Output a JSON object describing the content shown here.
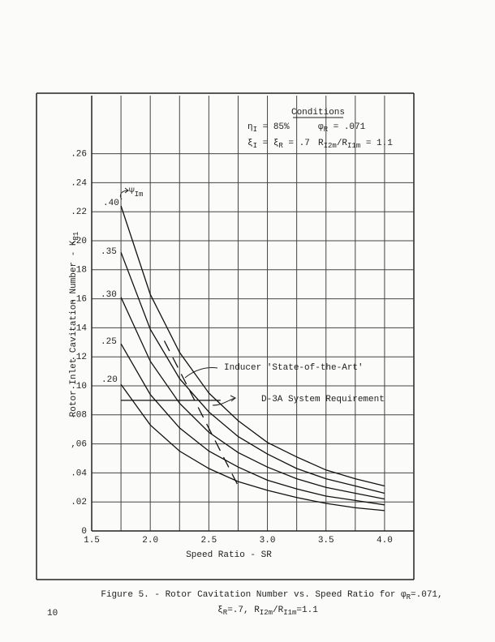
{
  "chart_data": {
    "type": "line",
    "xlabel": "Speed Ratio - SR",
    "ylabel": [
      "Rotor Inlet Cavitation Number - K",
      {
        "sub": "R1"
      }
    ],
    "xlim": [
      1.5,
      4.25
    ],
    "ylim": [
      0,
      0.3
    ],
    "xticks": [
      1.5,
      {
        "value": 2,
        "label": "2.0"
      },
      2.5,
      {
        "value": 3,
        "label": "3.0"
      },
      3.5,
      {
        "value": 4,
        "label": "4.0"
      }
    ],
    "xminor": [
      1.75,
      2.25,
      2.75,
      3.25,
      3.75
    ],
    "yticks": [
      0,
      {
        "value": 0.02,
        "label": ".02"
      },
      {
        "value": 0.04,
        "label": ".04"
      },
      {
        "value": 0.06,
        "label": ",06"
      },
      {
        "value": 0.08,
        "label": ".08"
      },
      {
        "value": 0.1,
        "label": ".10"
      },
      {
        "value": 0.12,
        "label": ".12"
      },
      {
        "value": 0.14,
        "label": ".14"
      },
      {
        "value": 0.16,
        "label": ",16"
      },
      {
        "value": 0.18,
        "label": ".18"
      },
      {
        "value": 0.2,
        "label": ".20"
      },
      {
        "value": 0.22,
        "label": ".22"
      },
      {
        "value": 0.24,
        "label": ".24"
      },
      {
        "value": 0.26,
        "label": ".26"
      }
    ],
    "grid": true,
    "curve_label_title": [
      "Ψ",
      {
        "sub": "Im"
      }
    ],
    "series": [
      {
        "name": ".40",
        "color": "#111111",
        "x": [
          1.75,
          2.0,
          2.25,
          2.5,
          2.75,
          3.0,
          3.25,
          3.5,
          3.75,
          4.0
        ],
        "values": [
          0.224,
          0.163,
          0.123,
          0.095,
          0.076,
          0.061,
          0.051,
          0.042,
          0.036,
          0.031
        ]
      },
      {
        "name": ".35",
        "color": "#111111",
        "x": [
          1.75,
          2.0,
          2.25,
          2.5,
          2.75,
          3.0,
          3.25,
          3.5,
          3.75,
          4.0
        ],
        "values": [
          0.192,
          0.139,
          0.105,
          0.082,
          0.065,
          0.053,
          0.043,
          0.036,
          0.031,
          0.026
        ]
      },
      {
        "name": ".30",
        "color": "#111111",
        "x": [
          1.75,
          2.0,
          2.25,
          2.5,
          2.75,
          3.0,
          3.25,
          3.5,
          3.75,
          4.0
        ],
        "values": [
          0.161,
          0.117,
          0.088,
          0.068,
          0.054,
          0.044,
          0.036,
          0.03,
          0.026,
          0.022
        ]
      },
      {
        "name": ".25",
        "color": "#111111",
        "x": [
          1.75,
          2.0,
          2.25,
          2.5,
          2.75,
          3.0,
          3.25,
          3.5,
          3.75,
          4.0
        ],
        "values": [
          0.129,
          0.094,
          0.071,
          0.055,
          0.044,
          0.035,
          0.029,
          0.024,
          0.021,
          0.018
        ]
      },
      {
        "name": ".20",
        "color": "#111111",
        "x": [
          1.75,
          2.0,
          2.25,
          2.5,
          2.75,
          3.0,
          3.25,
          3.5,
          3.75,
          4.0
        ],
        "values": [
          0.101,
          0.073,
          0.055,
          0.043,
          0.034,
          0.028,
          0.023,
          0.019,
          0.016,
          0.014
        ]
      },
      {
        "name": "Inducer 'State-of-the-Art'",
        "color": "#111111",
        "dash": true,
        "x": [
          2.12,
          2.77
        ],
        "values": [
          0.131,
          0.028
        ]
      },
      {
        "name": "D-3A System Requirement",
        "color": "#111111",
        "x": [
          1.75,
          2.6
        ],
        "values": [
          0.09,
          0.09
        ]
      }
    ],
    "conditions": {
      "title": "Conditions",
      "lines": [
        [
          [
            "η",
            {
              "sub": "I"
            },
            " = 85%"
          ],
          [
            "φ",
            {
              "sub": "R"
            },
            " = .071"
          ]
        ],
        [
          [
            "ξ",
            {
              "sub": "I"
            },
            " = ξ",
            {
              "sub": "R"
            },
            " = .7"
          ],
          [
            "R",
            {
              "sub": "I2m"
            },
            "/R",
            {
              "sub": "I1m"
            },
            " = 1.1"
          ]
        ]
      ]
    },
    "caption": [
      [
        "Figure 5. - Rotor Cavitation Number vs. Speed Ratio for φ",
        {
          "sub": "R"
        },
        "=.071,"
      ],
      [
        "ξ",
        {
          "sub": "R"
        },
        "=.7, R",
        {
          "sub": "I2m"
        },
        "/R",
        {
          "sub": "I1m"
        },
        "=1.1"
      ]
    ],
    "page_number": "10"
  }
}
